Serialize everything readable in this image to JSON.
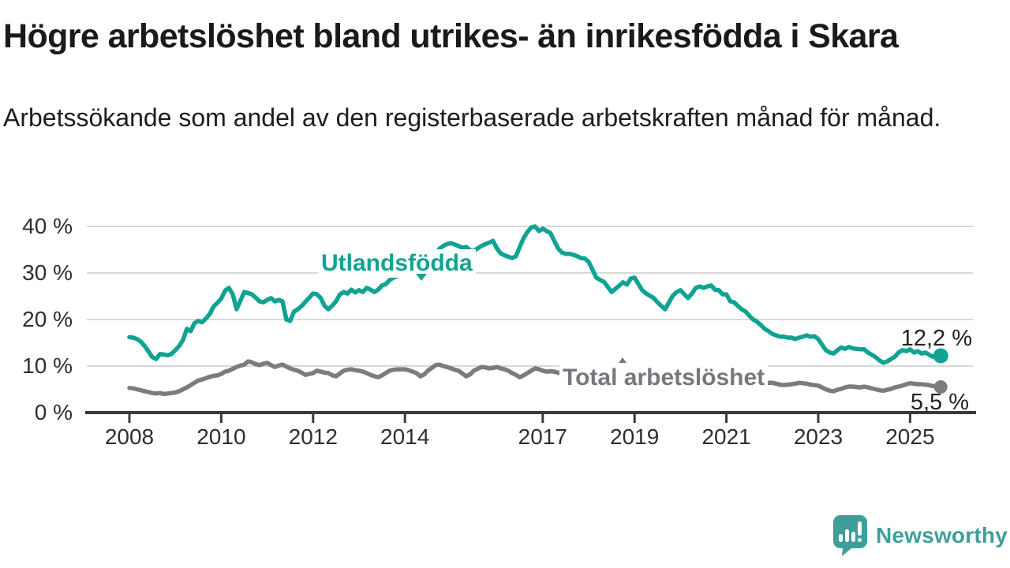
{
  "header": {
    "title": "Högre arbetslöshet bland utrikes- än inrikesfödda i Skara",
    "subtitle": "Arbetssökande som andel av den registerbaserade arbetskraften månad för månad."
  },
  "chart_data": {
    "type": "line",
    "unit": "%",
    "frequency": "monthly",
    "start": "2008-01",
    "end": "2025-09",
    "grid": true,
    "ylim": [
      0,
      42
    ],
    "y_ticks": [
      {
        "value": 0,
        "label": "0 %"
      },
      {
        "value": 10,
        "label": "10 %"
      },
      {
        "value": 20,
        "label": "20 %"
      },
      {
        "value": 30,
        "label": "30 %"
      },
      {
        "value": 40,
        "label": "40 %"
      }
    ],
    "x_ticks": [
      {
        "year": 2008,
        "label": "2008"
      },
      {
        "year": 2010,
        "label": "2010"
      },
      {
        "year": 2012,
        "label": "2012"
      },
      {
        "year": 2014,
        "label": "2014"
      },
      {
        "year": 2017,
        "label": "2017"
      },
      {
        "year": 2019,
        "label": "2019"
      },
      {
        "year": 2021,
        "label": "2021"
      },
      {
        "year": 2023,
        "label": "2023"
      },
      {
        "year": 2025,
        "label": "2025"
      }
    ],
    "series": [
      {
        "name": "Utlandsfödda",
        "label": "Utlandsfödda",
        "color": "#10a392",
        "end_label": "12,2 %",
        "end_value": 12.2,
        "values": [
          16.2,
          16.1,
          15.8,
          15.2,
          14.3,
          13.1,
          11.9,
          11.5,
          12.6,
          12.5,
          12.3,
          12.6,
          13.4,
          14.3,
          15.6,
          18.0,
          17.5,
          19.2,
          19.7,
          19.4,
          20.2,
          21.2,
          22.8,
          23.6,
          24.5,
          26.2,
          26.8,
          25.4,
          22.2,
          24.0,
          25.9,
          25.7,
          25.4,
          24.7,
          23.9,
          23.7,
          24.2,
          24.6,
          23.9,
          24.2,
          23.9,
          20.0,
          19.7,
          21.7,
          22.2,
          22.9,
          23.8,
          24.7,
          25.6,
          25.4,
          24.6,
          22.9,
          22.2,
          23.0,
          23.9,
          25.4,
          25.9,
          25.6,
          26.4,
          25.8,
          26.3,
          25.9,
          26.8,
          26.4,
          25.9,
          26.4,
          27.3,
          27.6,
          28.5,
          29.0,
          29.3,
          29.5,
          29.7,
          29.9,
          30.1,
          29.8,
          29.4,
          29.9,
          31.2,
          32.6,
          34.2,
          35.2,
          35.8,
          36.2,
          36.4,
          36.1,
          35.8,
          35.4,
          35.6,
          34.9,
          34.7,
          35.3,
          35.8,
          36.2,
          36.5,
          36.9,
          35.3,
          34.2,
          33.8,
          33.5,
          33.2,
          33.6,
          35.6,
          37.5,
          38.8,
          39.8,
          40.0,
          39.0,
          39.5,
          39.0,
          38.6,
          36.9,
          35.3,
          34.4,
          34.1,
          34.1,
          33.9,
          33.6,
          33.2,
          33.1,
          32.4,
          30.7,
          29.0,
          28.5,
          28.1,
          27.0,
          25.9,
          26.6,
          27.3,
          28.0,
          27.5,
          28.8,
          29.0,
          27.6,
          26.3,
          25.6,
          25.1,
          24.6,
          23.7,
          22.9,
          22.2,
          23.7,
          25.1,
          25.9,
          26.3,
          25.4,
          24.6,
          25.6,
          26.8,
          27.1,
          26.8,
          27.1,
          27.3,
          26.4,
          26.3,
          25.4,
          25.4,
          23.9,
          23.7,
          22.9,
          22.2,
          21.7,
          20.8,
          20.0,
          19.5,
          18.8,
          18.0,
          17.5,
          16.9,
          16.6,
          16.3,
          16.3,
          16.1,
          16.1,
          15.8,
          16.1,
          16.3,
          16.6,
          16.3,
          16.4,
          15.8,
          14.6,
          13.4,
          12.9,
          12.7,
          13.4,
          14.0,
          13.7,
          14.1,
          13.8,
          13.7,
          13.6,
          13.6,
          12.9,
          12.4,
          11.9,
          11.2,
          10.7,
          11.0,
          11.5,
          12.0,
          12.9,
          13.4,
          13.2,
          13.6,
          12.9,
          13.2,
          12.7,
          12.9,
          12.4,
          12.0,
          12.4,
          12.2
        ]
      },
      {
        "name": "Total arbetslöshet",
        "label": "Total arbetslöshet",
        "color": "#7b7b80",
        "end_label": "5,5 %",
        "end_value": 5.5,
        "values": [
          5.3,
          5.2,
          5.0,
          4.8,
          4.6,
          4.4,
          4.2,
          4.1,
          4.2,
          4.0,
          4.1,
          4.2,
          4.3,
          4.6,
          5.0,
          5.4,
          5.9,
          6.4,
          6.9,
          7.1,
          7.4,
          7.7,
          7.9,
          8.0,
          8.3,
          8.8,
          9.0,
          9.4,
          9.8,
          10.1,
          10.3,
          11.0,
          10.8,
          10.4,
          10.2,
          10.5,
          10.7,
          10.2,
          9.8,
          10.1,
          10.3,
          9.9,
          9.5,
          9.2,
          9.0,
          8.6,
          8.1,
          8.3,
          8.5,
          9.0,
          8.8,
          8.6,
          8.5,
          8.0,
          7.8,
          8.4,
          9.0,
          9.2,
          9.3,
          9.1,
          9.0,
          8.8,
          8.5,
          8.1,
          7.8,
          7.6,
          8.0,
          8.5,
          9.0,
          9.2,
          9.3,
          9.3,
          9.3,
          9.1,
          8.8,
          8.5,
          7.8,
          8.2,
          9.0,
          9.6,
          10.2,
          10.3,
          10.0,
          9.8,
          9.5,
          9.2,
          9.0,
          8.4,
          7.8,
          8.2,
          9.0,
          9.4,
          9.8,
          9.7,
          9.5,
          9.6,
          9.8,
          9.5,
          9.3,
          9.0,
          8.5,
          8.1,
          7.6,
          8.0,
          8.5,
          9.0,
          9.5,
          9.3,
          9.0,
          8.8,
          8.9,
          8.8,
          8.6,
          8.3,
          8.3,
          8.5,
          8.4,
          8.2,
          8.0,
          7.9,
          7.8,
          7.6,
          7.4,
          7.2,
          7.0,
          6.9,
          7.0,
          7.2,
          7.1,
          7.0,
          6.9,
          6.8,
          6.8,
          6.7,
          6.6,
          6.6,
          6.7,
          6.9,
          7.1,
          7.2,
          7.2,
          7.3,
          7.4,
          7.6,
          7.8,
          8.0,
          8.4,
          8.9,
          9.2,
          9.4,
          9.3,
          9.1,
          8.9,
          8.6,
          8.2,
          7.8,
          7.0,
          6.4,
          6.1,
          5.8,
          5.6,
          5.7,
          5.8,
          5.9,
          6.0,
          6.1,
          6.3,
          6.4,
          6.4,
          6.2,
          6.0,
          5.9,
          6.0,
          6.1,
          6.2,
          6.4,
          6.3,
          6.2,
          6.0,
          5.9,
          5.8,
          5.4,
          5.0,
          4.7,
          4.6,
          4.9,
          5.1,
          5.4,
          5.6,
          5.6,
          5.5,
          5.4,
          5.6,
          5.4,
          5.2,
          5.0,
          4.8,
          4.7,
          4.9,
          5.1,
          5.4,
          5.6,
          5.8,
          6.1,
          6.3,
          6.2,
          6.1,
          6.1,
          6.0,
          5.9,
          5.7,
          5.6,
          5.5
        ]
      }
    ]
  },
  "footer": {
    "brand": "Newsworthy",
    "brand_color": "#3f9f98"
  }
}
